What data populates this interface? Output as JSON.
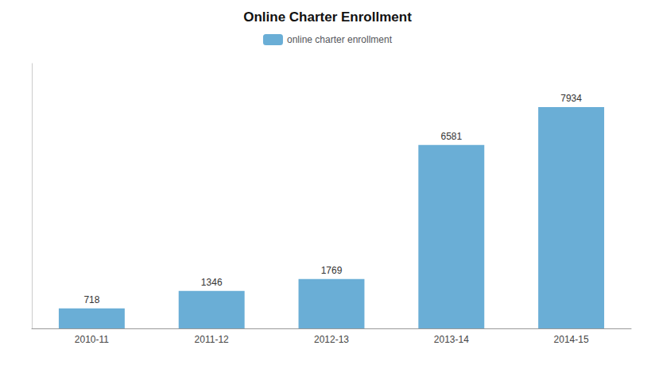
{
  "chart_data": {
    "type": "bar",
    "title": "Online Charter Enrollment",
    "categories": [
      "2010-11",
      "2011-12",
      "2012-13",
      "2013-14",
      "2014-15"
    ],
    "series": [
      {
        "name": "online charter enrollment",
        "color": "#6aaed6",
        "values": [
          718,
          1346,
          1769,
          6581,
          7934
        ]
      }
    ],
    "ylim": [
      0,
      9500
    ],
    "grid": false,
    "legend": "top",
    "data_labels": true,
    "tick_labels": "x"
  }
}
